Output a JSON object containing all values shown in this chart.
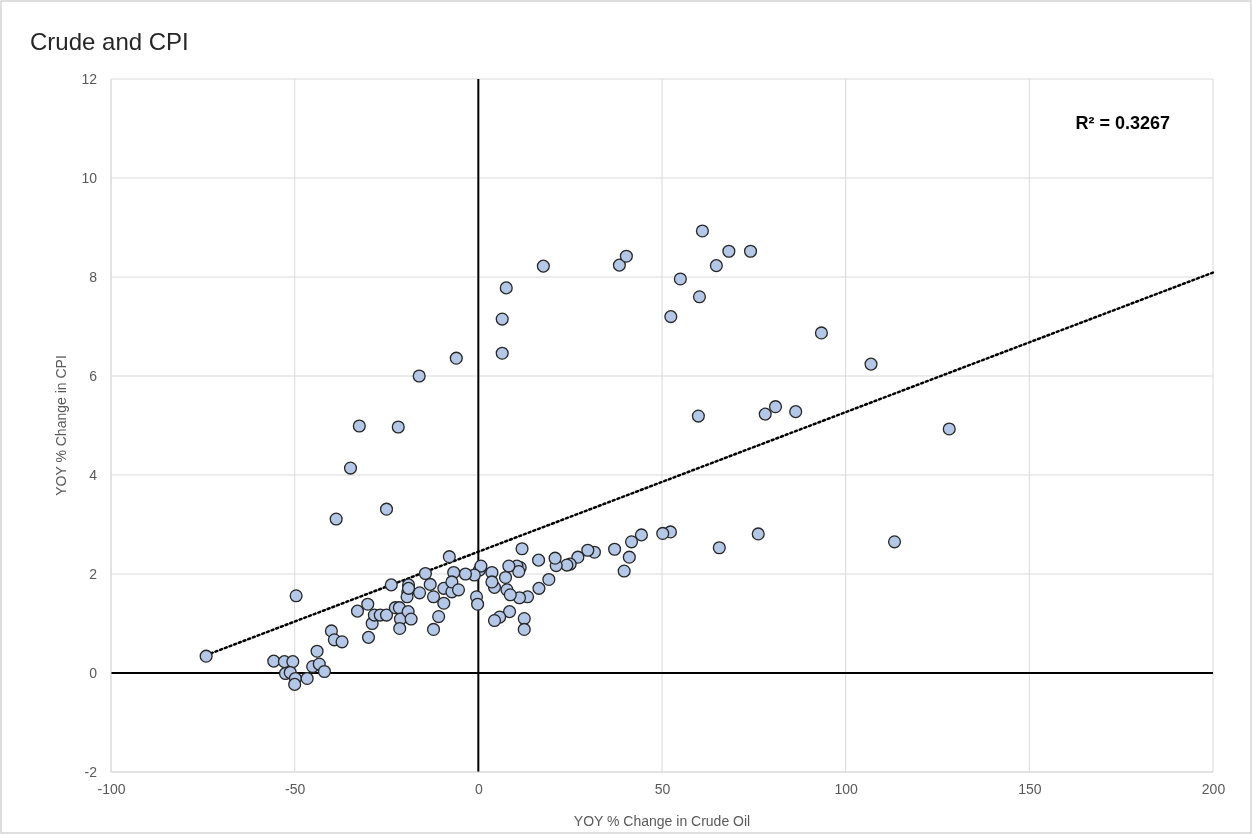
{
  "chart_data": {
    "type": "scatter",
    "title": "Crude and CPI",
    "xlabel": "YOY % Change in Crude Oil",
    "ylabel": "YOY % Change in CPI",
    "xlim": [
      -100,
      200
    ],
    "xticks": [
      -100,
      -50,
      0,
      50,
      100,
      150,
      200
    ],
    "ylim": [
      -2,
      12
    ],
    "yticks": [
      -2,
      0,
      2,
      4,
      6,
      8,
      10,
      12
    ],
    "grid": true,
    "marker": "circle",
    "annotations": [
      "R² = 0.3267"
    ],
    "series": [
      {
        "color": "#b4c7e7",
        "x": [
          -74.1,
          -49.6,
          -38.7,
          -34.8,
          -32.4,
          -25.0,
          -21.8,
          -16.1,
          -6.0,
          6.5,
          6.5,
          7.6,
          17.7,
          38.4,
          40.3,
          61.0,
          68.2,
          74.1,
          64.8,
          55.0,
          60.2,
          52.4,
          93.4,
          106.9,
          59.9,
          78.1,
          80.9,
          86.4,
          128.2,
          76.2,
          65.6,
          113.3,
          52.3,
          50.2,
          44.4,
          41.7,
          41.1,
          39.7,
          37.1,
          31.6,
          29.8,
          27.1,
          25.0,
          24.1,
          21.2,
          20.9,
          19.2,
          16.5,
          16.4,
          13.4,
          11.2,
          12.5,
          12.5,
          11.9,
          11.4,
          10.5,
          11.0,
          8.3,
          7.4,
          7.8,
          8.7,
          8.5,
          5.8,
          4.4,
          4.4,
          3.7,
          3.7,
          0.3,
          0.7,
          -1.1,
          -0.5,
          -0.2,
          -55.7,
          -52.8,
          -50.5,
          -52.5,
          -51.2,
          -49.8,
          -50.0,
          -46.6,
          -45.1,
          -43.3,
          -43.9,
          -41.9,
          -40.0,
          -39.2,
          -37.1,
          -32.9,
          -30.1,
          -28.9,
          -29.9,
          -28.3,
          -26.7,
          -25.0,
          -23.7,
          -22.6,
          -21.5,
          -21.2,
          -21.4,
          -19.1,
          -18.3,
          -19.2,
          -19.4,
          -19.0,
          -19.0,
          -16.0,
          -14.4,
          -13.1,
          -12.2,
          -12.2,
          -10.8,
          -9.4,
          -9.4,
          -7.9,
          -7.2,
          -6.7,
          -7.2,
          -5.4,
          -3.5
        ],
        "values": [
          0.34,
          1.56,
          3.11,
          4.14,
          4.99,
          3.31,
          4.97,
          6.0,
          6.36,
          6.46,
          7.15,
          7.78,
          8.22,
          8.24,
          8.42,
          8.93,
          8.52,
          8.52,
          8.23,
          7.96,
          7.6,
          7.2,
          6.87,
          6.24,
          5.19,
          5.23,
          5.38,
          5.28,
          4.93,
          2.81,
          2.53,
          2.65,
          2.85,
          2.82,
          2.79,
          2.65,
          2.34,
          2.06,
          2.5,
          2.44,
          2.48,
          2.34,
          2.2,
          2.18,
          2.17,
          2.32,
          1.89,
          1.71,
          2.28,
          1.54,
          1.52,
          1.1,
          0.88,
          2.51,
          2.13,
          2.16,
          2.05,
          2.16,
          1.93,
          1.68,
          1.58,
          1.24,
          1.13,
          1.06,
          1.73,
          2.03,
          1.84,
          2.08,
          2.16,
          1.98,
          1.54,
          1.39,
          0.24,
          0.23,
          0.23,
          -0.01,
          0.01,
          -0.11,
          -0.23,
          -0.11,
          0.13,
          0.18,
          0.44,
          0.03,
          0.85,
          0.67,
          0.63,
          1.25,
          1.39,
          1.0,
          0.72,
          1.17,
          1.17,
          1.17,
          1.78,
          1.32,
          1.32,
          1.09,
          0.9,
          1.24,
          1.09,
          1.64,
          1.54,
          1.78,
          1.71,
          1.62,
          2.01,
          1.79,
          1.54,
          0.88,
          1.14,
          1.41,
          1.71,
          2.35,
          1.64,
          2.03,
          1.84,
          1.68,
          2.0
        ]
      },
      {
        "type": "line",
        "color": "#000000",
        "line_style": "dotted",
        "marker": "none",
        "x": [
          -74.1,
          200
        ],
        "values": [
          0.36,
          8.09
        ]
      }
    ]
  }
}
